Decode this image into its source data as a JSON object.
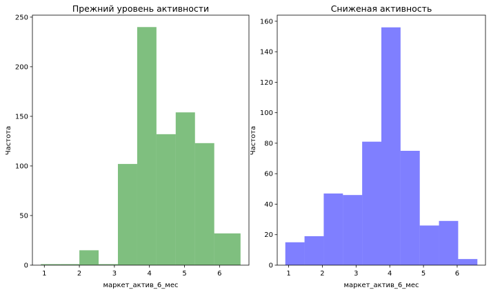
{
  "chart_data": [
    {
      "type": "bar",
      "title": "Прежний уровень активности",
      "xlabel": "маркет_актив_6_мес",
      "ylabel": "Частота",
      "color": "#008000",
      "opacity": 0.5,
      "bin_edges": [
        0.9,
        1.45,
        2.0,
        2.55,
        3.1,
        3.65,
        4.2,
        4.75,
        5.3,
        5.85,
        6.6
      ],
      "values": [
        1,
        1,
        15,
        1,
        102,
        240,
        132,
        154,
        123,
        32
      ],
      "xlim": [
        0.66,
        6.84
      ],
      "ylim": [
        0,
        252
      ],
      "xticks": [
        "1",
        "2",
        "3",
        "4",
        "5",
        "6"
      ],
      "yticks": [
        "0",
        "50",
        "100",
        "150",
        "200",
        "250"
      ]
    },
    {
      "type": "bar",
      "title": "Сниженая активность",
      "xlabel": "маркет_актив_6_мес",
      "ylabel": "Частота",
      "color": "#0000ff",
      "opacity": 0.5,
      "bin_edges": [
        0.9,
        1.47,
        2.04,
        2.61,
        3.18,
        3.75,
        4.32,
        4.89,
        5.46,
        6.03,
        6.6
      ],
      "values": [
        15,
        19,
        47,
        46,
        81,
        156,
        75,
        26,
        29,
        4
      ],
      "xlim": [
        0.66,
        6.84
      ],
      "ylim": [
        0,
        164
      ],
      "xticks": [
        "1",
        "2",
        "3",
        "4",
        "5",
        "6"
      ],
      "yticks": [
        "0",
        "20",
        "40",
        "60",
        "80",
        "100",
        "120",
        "140",
        "160"
      ]
    }
  ]
}
